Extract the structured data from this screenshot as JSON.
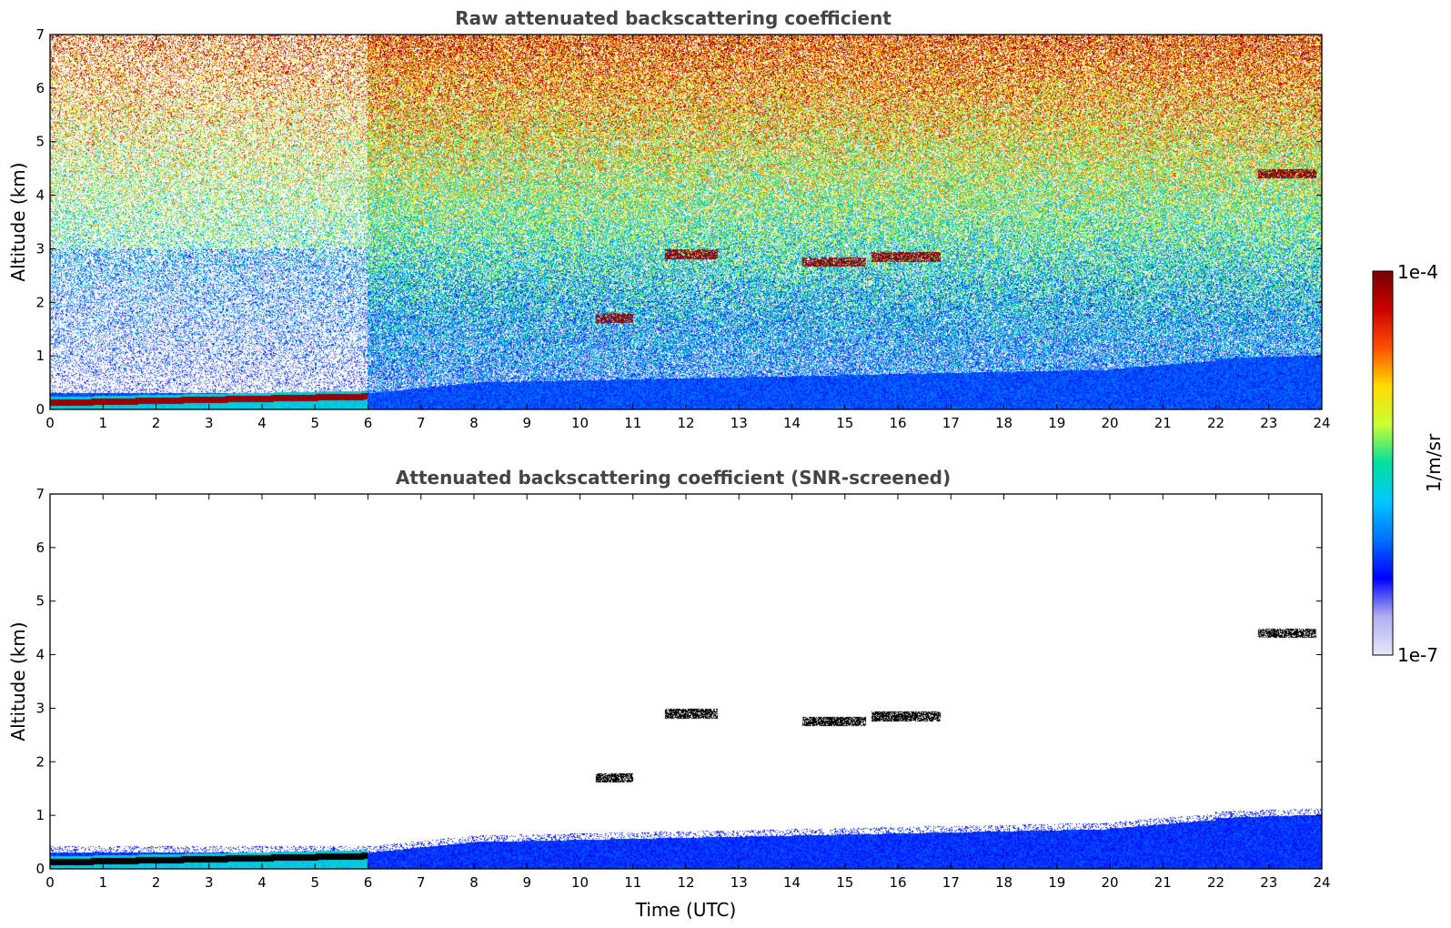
{
  "colormap": {
    "stops": [
      "#e6e6fa",
      "#b0b0f0",
      "#0000ff",
      "#0070ff",
      "#00c8ff",
      "#00e0a0",
      "#c8ff32",
      "#ffdc00",
      "#ff5000",
      "#cc0000",
      "#7a0000"
    ],
    "min_label": "1e-7",
    "max_label": "1e-4",
    "unit_label": "1/m/sr"
  },
  "chart_data": [
    {
      "type": "heatmap",
      "title": "Raw attenuated backscattering coefficient",
      "xlabel": "",
      "ylabel": "Altitude (km)",
      "xlim": [
        0,
        24
      ],
      "ylim": [
        0,
        7
      ],
      "xticks": [
        "0",
        "1",
        "2",
        "3",
        "4",
        "5",
        "6",
        "7",
        "8",
        "9",
        "10",
        "11",
        "12",
        "13",
        "14",
        "15",
        "16",
        "17",
        "18",
        "19",
        "20",
        "21",
        "22",
        "23",
        "24"
      ],
      "yticks": [
        "0",
        "1",
        "2",
        "3",
        "4",
        "5",
        "6",
        "7"
      ],
      "value_range": [
        "1e-7",
        "1e-4"
      ],
      "features": [
        {
          "kind": "surface_layer",
          "x": [
            0,
            6
          ],
          "y_top": 0.3,
          "level": 0.95
        },
        {
          "kind": "boundary_layer",
          "x": [
            6,
            24
          ],
          "y_top": [
            0.3,
            1.0
          ],
          "level": 0.25
        },
        {
          "kind": "cloud",
          "x": [
            10.3,
            11.0
          ],
          "y": 1.7,
          "level": 0.95
        },
        {
          "kind": "cloud",
          "x": [
            11.6,
            12.6
          ],
          "y": 2.9,
          "level": 0.95
        },
        {
          "kind": "cloud",
          "x": [
            14.2,
            15.4
          ],
          "y": 2.75,
          "level": 0.95
        },
        {
          "kind": "cloud",
          "x": [
            15.5,
            16.8
          ],
          "y": 2.85,
          "level": 0.95
        },
        {
          "kind": "cloud",
          "x": [
            22.8,
            23.9
          ],
          "y": 4.4,
          "level": 0.95
        }
      ]
    },
    {
      "type": "heatmap",
      "title": "Attenuated backscattering coefficient (SNR-screened)",
      "xlabel": "Time (UTC)",
      "ylabel": "Altitude (km)",
      "xlim": [
        0,
        24
      ],
      "ylim": [
        0,
        7
      ],
      "xticks": [
        "0",
        "1",
        "2",
        "3",
        "4",
        "5",
        "6",
        "7",
        "8",
        "9",
        "10",
        "11",
        "12",
        "13",
        "14",
        "15",
        "16",
        "17",
        "18",
        "19",
        "20",
        "21",
        "22",
        "23",
        "24"
      ],
      "yticks": [
        "0",
        "1",
        "2",
        "3",
        "4",
        "5",
        "6",
        "7"
      ],
      "value_range": [
        "1e-7",
        "1e-4"
      ],
      "features": [
        {
          "kind": "surface_layer",
          "x": [
            0,
            6
          ],
          "y_top": 0.3,
          "level": 0.95
        },
        {
          "kind": "boundary_layer",
          "x": [
            6,
            24
          ],
          "y_top": [
            0.3,
            1.0
          ],
          "level": 0.2
        },
        {
          "kind": "cloud",
          "x": [
            10.3,
            11.0
          ],
          "y": 1.7,
          "level": 1.0
        },
        {
          "kind": "cloud",
          "x": [
            11.6,
            12.6
          ],
          "y": 2.9,
          "level": 1.0
        },
        {
          "kind": "cloud",
          "x": [
            14.2,
            15.4
          ],
          "y": 2.75,
          "level": 1.0
        },
        {
          "kind": "cloud",
          "x": [
            15.5,
            16.8
          ],
          "y": 2.85,
          "level": 1.0
        },
        {
          "kind": "cloud",
          "x": [
            22.8,
            23.9
          ],
          "y": 4.4,
          "level": 1.0
        }
      ]
    }
  ]
}
